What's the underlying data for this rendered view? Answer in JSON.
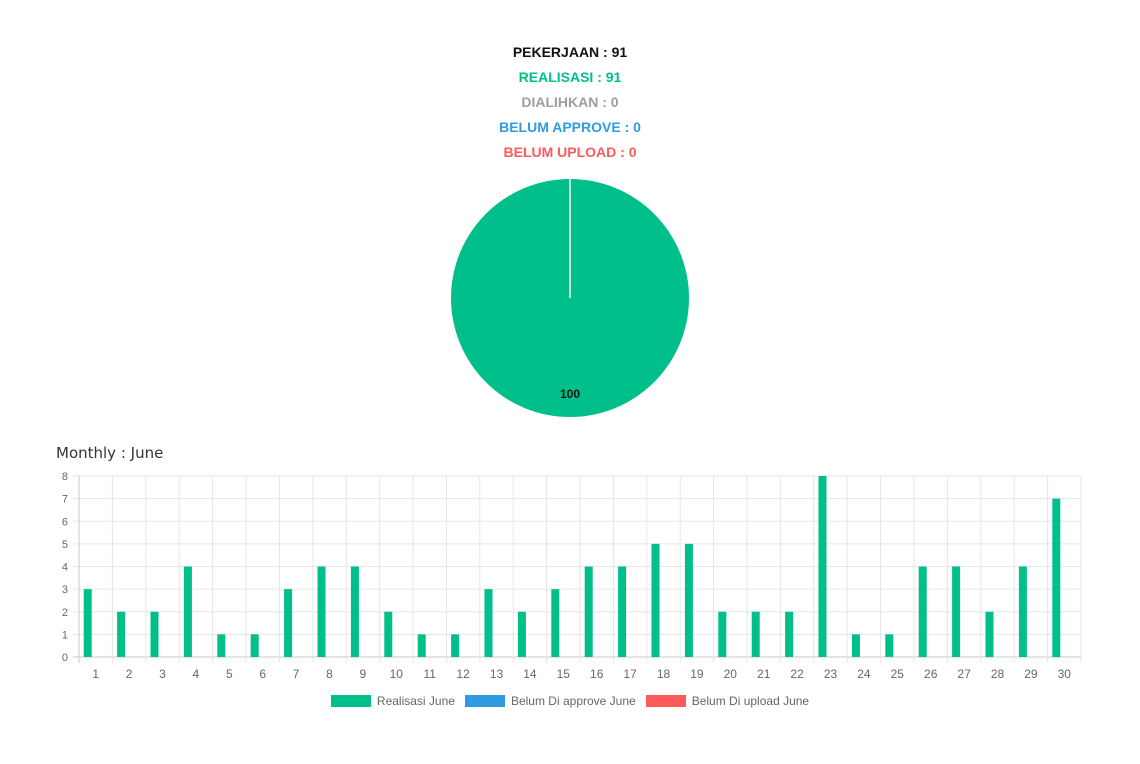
{
  "summary": {
    "pekerjaan": "PEKERJAAN : 91",
    "realisasi": "REALISASI : 91",
    "dialihkan": "DIALIHKAN : 0",
    "belum_approve": "BELUM APPROVE : 0",
    "belum_upload": "BELUM UPLOAD : 0"
  },
  "colors": {
    "realisasi": "#00bf8a",
    "dialihkan": "#9e9e9e",
    "belum_approve": "#2f9be0",
    "belum_upload": "#ff5a5a",
    "pekerjaan": "#111111"
  },
  "monthly_title": "Monthly : June",
  "chart_data": [
    {
      "type": "pie",
      "slices": [
        {
          "label": "Realisasi",
          "value": 100,
          "color": "#00bf8a"
        }
      ],
      "data_label": "100"
    },
    {
      "type": "bar",
      "categories": [
        "1",
        "2",
        "3",
        "4",
        "5",
        "6",
        "7",
        "8",
        "9",
        "10",
        "11",
        "12",
        "13",
        "14",
        "15",
        "16",
        "17",
        "18",
        "19",
        "20",
        "21",
        "22",
        "23",
        "24",
        "25",
        "26",
        "27",
        "28",
        "29",
        "30"
      ],
      "series": [
        {
          "name": "Realisasi June",
          "color": "#00bf8a",
          "values": [
            3,
            2,
            2,
            4,
            1,
            1,
            3,
            4,
            4,
            2,
            1,
            1,
            3,
            2,
            3,
            4,
            4,
            5,
            5,
            2,
            2,
            2,
            8,
            1,
            1,
            4,
            4,
            2,
            4,
            7
          ]
        },
        {
          "name": "Belum Di approve June",
          "color": "#2f9be0",
          "values": [
            0,
            0,
            0,
            0,
            0,
            0,
            0,
            0,
            0,
            0,
            0,
            0,
            0,
            0,
            0,
            0,
            0,
            0,
            0,
            0,
            0,
            0,
            0,
            0,
            0,
            0,
            0,
            0,
            0,
            0
          ]
        },
        {
          "name": "Belum Di upload June",
          "color": "#ff5a5a",
          "values": [
            0,
            0,
            0,
            0,
            0,
            0,
            0,
            0,
            0,
            0,
            0,
            0,
            0,
            0,
            0,
            0,
            0,
            0,
            0,
            0,
            0,
            0,
            0,
            0,
            0,
            0,
            0,
            0,
            0,
            0
          ]
        }
      ],
      "yticks": [
        0,
        1,
        2,
        3,
        4,
        5,
        6,
        7,
        8
      ],
      "ylim": [
        0,
        8
      ],
      "grid": true,
      "legend_position": "bottom"
    }
  ]
}
